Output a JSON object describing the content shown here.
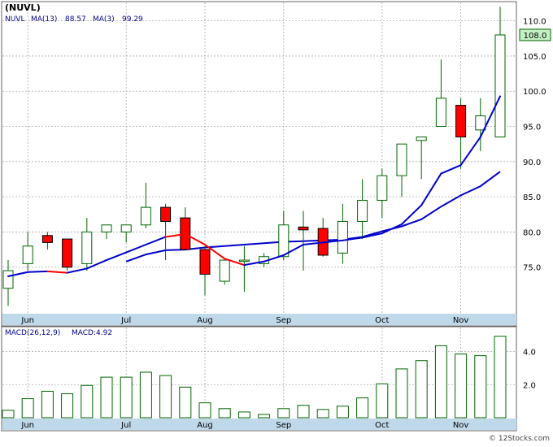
{
  "chart_data": [
    {
      "type": "candlestick",
      "title": "(NUVL)",
      "legend": {
        "ticker": "NUVL",
        "ma13_label": "MA(13)",
        "ma13_value": "88.57",
        "ma3_label": "MA(3)",
        "ma3_value": "99.29"
      },
      "price_label": "108.0",
      "price_value": 108.0,
      "ylim": [
        68.5,
        112.5
      ],
      "ytick_labels": [
        "75.0",
        "80.0",
        "85.0",
        "90.0",
        "95.0",
        "100.0",
        "105.0",
        "110.0"
      ],
      "ytick_values": [
        75,
        80,
        85,
        90,
        95,
        100,
        105,
        110
      ],
      "xtick_labels": [
        "Jun",
        "Jul",
        "Aug",
        "Sep",
        "Oct",
        "Nov"
      ],
      "xtick_index": [
        1,
        6,
        10,
        14,
        19,
        23
      ],
      "candles": [
        {
          "open": 72.0,
          "high": 76.0,
          "low": 69.5,
          "close": 74.5,
          "dir": "up"
        },
        {
          "open": 75.5,
          "high": 80.0,
          "low": 74.5,
          "close": 78.0,
          "dir": "up"
        },
        {
          "open": 79.5,
          "high": 80.0,
          "low": 77.5,
          "close": 78.5,
          "dir": "down"
        },
        {
          "open": 79.0,
          "high": 79.0,
          "low": 74.5,
          "close": 75.0,
          "dir": "down"
        },
        {
          "open": 75.5,
          "high": 82.0,
          "low": 74.5,
          "close": 80.0,
          "dir": "up"
        },
        {
          "open": 80.0,
          "high": 81.0,
          "low": 79.0,
          "close": 81.0,
          "dir": "up"
        },
        {
          "open": 80.0,
          "high": 81.0,
          "low": 78.5,
          "close": 81.0,
          "dir": "up"
        },
        {
          "open": 81.0,
          "high": 87.0,
          "low": 80.5,
          "close": 83.5,
          "dir": "up"
        },
        {
          "open": 83.5,
          "high": 84.0,
          "low": 76.0,
          "close": 81.5,
          "dir": "down"
        },
        {
          "open": 82.0,
          "high": 83.5,
          "low": 77.5,
          "close": 77.5,
          "dir": "down"
        },
        {
          "open": 77.5,
          "high": 78.0,
          "low": 71.0,
          "close": 74.0,
          "dir": "down"
        },
        {
          "open": 73.0,
          "high": 76.0,
          "low": 72.5,
          "close": 76.0,
          "dir": "up"
        },
        {
          "open": 76.0,
          "high": 78.0,
          "low": 71.5,
          "close": 76.0,
          "dir": "up"
        },
        {
          "open": 75.5,
          "high": 77.0,
          "low": 75.0,
          "close": 76.5,
          "dir": "up"
        },
        {
          "open": 76.5,
          "high": 83.0,
          "low": 76.0,
          "close": 81.0,
          "dir": "up"
        },
        {
          "open": 80.7,
          "high": 83.0,
          "low": 74.5,
          "close": 80.3,
          "dir": "down"
        },
        {
          "open": 80.5,
          "high": 82.0,
          "low": 76.5,
          "close": 76.7,
          "dir": "down"
        },
        {
          "open": 77.0,
          "high": 84.0,
          "low": 75.5,
          "close": 81.5,
          "dir": "up"
        },
        {
          "open": 81.5,
          "high": 87.5,
          "low": 79.0,
          "close": 84.5,
          "dir": "up"
        },
        {
          "open": 84.5,
          "high": 89.0,
          "low": 82.0,
          "close": 88.0,
          "dir": "up"
        },
        {
          "open": 88.0,
          "high": 92.5,
          "low": 85.0,
          "close": 92.5,
          "dir": "up"
        },
        {
          "open": 93.0,
          "high": 93.5,
          "low": 87.5,
          "close": 93.5,
          "dir": "up"
        },
        {
          "open": 95.0,
          "high": 104.5,
          "low": 95.0,
          "close": 99.0,
          "dir": "up"
        },
        {
          "open": 98.0,
          "high": 99.0,
          "low": 89.0,
          "close": 93.5,
          "dir": "down"
        },
        {
          "open": 94.5,
          "high": 99.0,
          "low": 91.5,
          "close": 96.5,
          "dir": "up"
        },
        {
          "open": 93.5,
          "high": 112.0,
          "low": 93.5,
          "close": 108.0,
          "dir": "up"
        }
      ],
      "ma13_values": [
        null,
        null,
        null,
        null,
        null,
        null,
        75.8,
        76.8,
        77.4,
        77.5,
        77.8,
        78.0,
        78.2,
        78.4,
        78.6,
        78.7,
        78.8,
        78.9,
        79.3,
        80.1,
        80.8,
        81.8,
        83.6,
        85.2,
        86.5,
        88.57
      ],
      "ma3_values": [
        73.7,
        74.3,
        74.4,
        74.2,
        74.8,
        76.0,
        77.1,
        78.2,
        79.3,
        79.7,
        78.2,
        76.2,
        75.3,
        75.8,
        76.7,
        78.2,
        78.5,
        78.8,
        79.2,
        79.8,
        81.1,
        83.8,
        88.3,
        89.5,
        93.5,
        99.29
      ],
      "ma3_segment_color": [
        "blue",
        "blue",
        "red",
        "blue",
        "blue",
        "blue",
        "blue",
        "blue",
        "red",
        "red",
        "red",
        "red",
        "blue",
        "blue",
        "blue",
        "blue",
        "blue",
        "blue",
        "blue",
        "blue",
        "blue",
        "blue",
        "blue",
        "blue",
        "blue"
      ]
    },
    {
      "type": "bar",
      "title": "MACD(26,12,9)",
      "legend": {
        "label": "MACD(26,12,9)",
        "value_label": "MACD:4.92"
      },
      "ylim": [
        0,
        5.4
      ],
      "ytick_labels": [
        "2.0",
        "4.0"
      ],
      "ytick_values": [
        2.0,
        4.0
      ],
      "xtick_labels": [
        "Jun",
        "Jul",
        "Aug",
        "Sep",
        "Oct",
        "Nov"
      ],
      "values": [
        0.45,
        1.15,
        1.6,
        1.45,
        1.95,
        2.45,
        2.45,
        2.75,
        2.55,
        1.85,
        0.9,
        0.55,
        0.35,
        0.2,
        0.55,
        0.75,
        0.5,
        0.7,
        1.2,
        2.05,
        2.95,
        3.45,
        4.35,
        3.85,
        3.75,
        4.92
      ]
    }
  ],
  "footer": {
    "text": "© 12Stocks.com"
  },
  "colors": {
    "up_fill": "#ffffff",
    "up_stroke": "#006400",
    "down_fill": "#ff0000",
    "down_stroke": "#000000",
    "ma3_line": "#0000cc",
    "ma3_down": "#ff0000",
    "ma13_line": "#0000cc",
    "grid": "#aaaaaa",
    "axis_band": "#bfd8ea",
    "macd_bar_stroke": "#006400",
    "price_tag_bg": "#c4f0c4"
  }
}
